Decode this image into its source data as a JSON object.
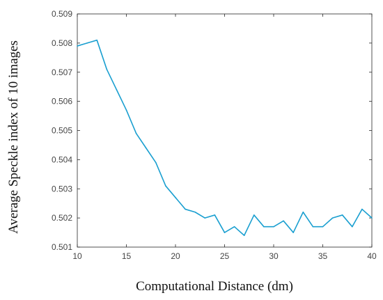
{
  "chart_data": {
    "type": "line",
    "title": "",
    "xlabel": "Computational Distance (dm)",
    "ylabel": "Average Speckle index of 10 images",
    "xlim": [
      10,
      40
    ],
    "ylim": [
      0.501,
      0.509
    ],
    "xticks": [
      "10",
      "15",
      "20",
      "25",
      "30",
      "35",
      "40"
    ],
    "yticks": [
      "0.501",
      "0.502",
      "0.503",
      "0.504",
      "0.505",
      "0.506",
      "0.507",
      "0.508",
      "0.509"
    ],
    "grid": false,
    "legend": "none",
    "line_color": "#1a9fd0",
    "series": [
      {
        "x": [
          10,
          11,
          12,
          13,
          14,
          15,
          16,
          17,
          18,
          19,
          20,
          21,
          22,
          23,
          24,
          25,
          26,
          27,
          28,
          29,
          30,
          31,
          32,
          33,
          34,
          35,
          36,
          37,
          38,
          39,
          40
        ],
        "y": [
          0.5079,
          0.508,
          0.5081,
          0.5071,
          0.5064,
          0.5057,
          0.5049,
          0.5044,
          0.5039,
          0.5031,
          0.5027,
          0.5023,
          0.5022,
          0.502,
          0.5021,
          0.5015,
          0.5017,
          0.5014,
          0.5021,
          0.5017,
          0.5017,
          0.5019,
          0.5015,
          0.5022,
          0.5017,
          0.5017,
          0.502,
          0.5021,
          0.5017,
          0.5023,
          0.502
        ]
      }
    ]
  }
}
